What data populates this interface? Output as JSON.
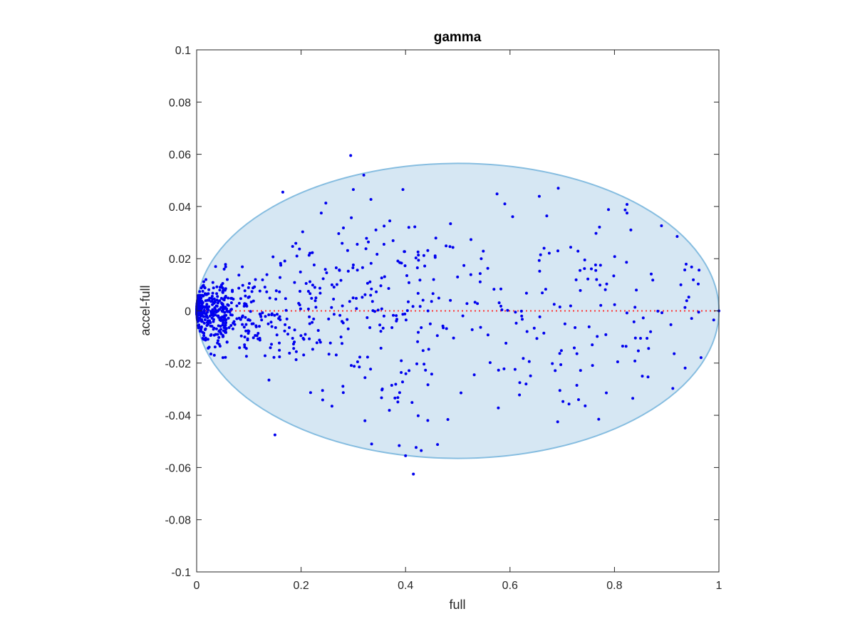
{
  "chart_data": {
    "type": "scatter",
    "title": "gamma",
    "xlabel": "full",
    "ylabel": "accel-full",
    "xlim": [
      0,
      1
    ],
    "ylim": [
      -0.1,
      0.1
    ],
    "x_ticks": [
      0,
      0.2,
      0.4,
      0.6,
      0.8,
      1
    ],
    "x_tick_labels": [
      "0",
      "0.2",
      "0.4",
      "0.6",
      "0.8",
      "1"
    ],
    "y_ticks": [
      0.1,
      0.08,
      0.06,
      0.04,
      0.02,
      0,
      -0.02,
      -0.04,
      -0.06,
      -0.08,
      -0.1
    ],
    "y_tick_labels": [
      "0.1",
      "0.08",
      "0.06",
      "0.04",
      "0.02",
      "0",
      "-0.02",
      "-0.04",
      "-0.06",
      "-0.08",
      "-0.1"
    ],
    "grid": false,
    "colors": {
      "points": "#0000ee",
      "reference_line": "#ff3333",
      "ellipse_fill": "#d6e7f3",
      "ellipse_stroke": "#86bde0",
      "axes": "#262626"
    },
    "reference_line": {
      "y": 0,
      "style": "dotted"
    },
    "confidence_ellipse": {
      "center": [
        0.5,
        0
      ],
      "semi_axis_x": 0.5,
      "semi_axis_y": 0.0565
    },
    "notable_points": [
      [
        0.295,
        0.0595
      ],
      [
        0.32,
        0.052
      ],
      [
        0.3,
        0.0465
      ],
      [
        0.395,
        0.0465
      ],
      [
        0.165,
        0.0455
      ],
      [
        0.59,
        0.041
      ],
      [
        0.415,
        -0.0625
      ],
      [
        0.15,
        -0.0475
      ],
      [
        0.335,
        -0.051
      ],
      [
        0.4,
        -0.0555
      ],
      [
        0.43,
        -0.0535
      ],
      [
        0.835,
        -0.0335
      ],
      [
        0.92,
        0.0285
      ],
      [
        0.99,
        -0.0035
      ],
      [
        1.0,
        0.0
      ]
    ],
    "series": [
      {
        "point_count": 900,
        "x": [],
        "y": []
      }
    ]
  }
}
